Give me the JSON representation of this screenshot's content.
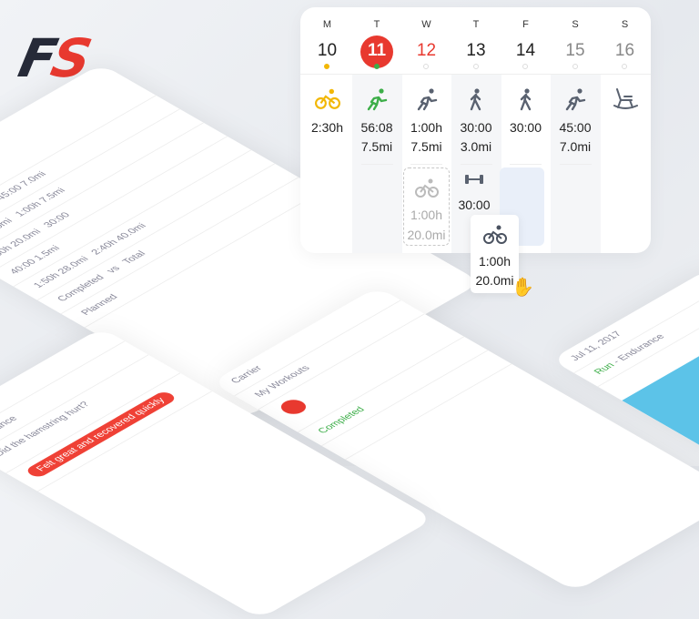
{
  "logo": {
    "f": "F",
    "s": "S"
  },
  "colors": {
    "brand_red": "#e8392f",
    "brand_dark": "#262a38",
    "today": "#e8392f",
    "bike": "#f2b705",
    "run_done": "#3dae49",
    "icon": "#5a6270",
    "ghost": "#e9eff9"
  },
  "calendar": {
    "days": [
      {
        "dow": "M",
        "date": "10",
        "icon": "bike-icon",
        "line1": "2:30h",
        "line2": ""
      },
      {
        "dow": "T",
        "date": "11",
        "icon": "run-icon",
        "line1": "56:08",
        "line2": "7.5mi",
        "today": true
      },
      {
        "dow": "W",
        "date": "12",
        "icon": "run-icon",
        "line1": "1:00h",
        "line2": "7.5mi"
      },
      {
        "dow": "T",
        "date": "13",
        "icon": "walk-icon",
        "line1": "30:00",
        "line2": "3.0mi"
      },
      {
        "dow": "F",
        "date": "14",
        "icon": "walk-icon",
        "line1": "30:00",
        "line2": ""
      },
      {
        "dow": "S",
        "date": "15",
        "icon": "run-icon",
        "line1": "45:00",
        "line2": "7.0mi"
      },
      {
        "dow": "S",
        "date": "16",
        "icon": "rest-rocking-chair-icon",
        "line1": "",
        "line2": ""
      }
    ],
    "planned_bike": {
      "line1": "1:00h",
      "line2": "20.0mi"
    },
    "strength": {
      "line1": "30:00"
    },
    "dragged": {
      "line1": "1:00h",
      "line2": "20.0mi"
    }
  },
  "phones": {
    "summary": {
      "planned": "Planned",
      "total": "Total",
      "completed": "Completed",
      "vs": "vs"
    },
    "workout": {
      "carrier": "Carrier",
      "status": "Completed",
      "title": "My Workouts"
    },
    "detail": {
      "date": "Jul 11, 2017",
      "sport": "Run",
      "type": "Endurance",
      "question": "Did the hamstring hurt?",
      "reply": "Felt great and recovered quickly"
    }
  }
}
